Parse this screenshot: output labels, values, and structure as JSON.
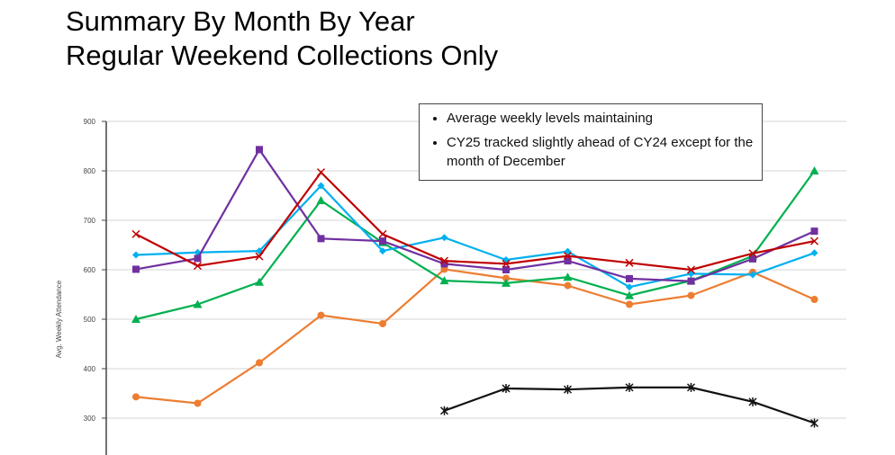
{
  "title": "Summary By Month By Year",
  "subtitle": "Regular Weekend Collections Only",
  "notes": [
    "Average weekly levels maintaining",
    "CY25 tracked slightly ahead of CY24 except for the month of December"
  ],
  "chart_data": {
    "type": "line",
    "title": "Summary By Month By Year",
    "subtitle": "Regular Weekend Collections Only",
    "xlabel": "",
    "ylabel": "Avg. Weekly Attendance",
    "ylim": [
      225,
      900
    ],
    "yticks": [
      300,
      400,
      500,
      600,
      700,
      800,
      900
    ],
    "grid": true,
    "x": [
      1,
      2,
      3,
      4,
      5,
      6,
      7,
      8,
      9,
      10,
      11,
      12
    ],
    "series": [
      {
        "marker": "circle",
        "color": "#ED7D31",
        "values": [
          343,
          330,
          412,
          508,
          491,
          601,
          583,
          568,
          530,
          548,
          595,
          540
        ]
      },
      {
        "marker": "triangle",
        "color": "#00B050",
        "values": [
          500,
          530,
          575,
          740,
          655,
          578,
          573,
          585,
          548,
          578,
          628,
          800
        ]
      },
      {
        "marker": "diamond",
        "color": "#00B0F0",
        "values": [
          630,
          635,
          638,
          770,
          638,
          665,
          620,
          637,
          565,
          592,
          590,
          634
        ]
      },
      {
        "marker": "square",
        "color": "#7030A0",
        "values": [
          601,
          623,
          843,
          663,
          658,
          612,
          600,
          618,
          582,
          577,
          622,
          678
        ]
      },
      {
        "marker": "x",
        "color": "#C00000",
        "values": [
          672,
          608,
          627,
          797,
          672,
          618,
          612,
          628,
          614,
          600,
          633,
          658
        ]
      },
      {
        "marker": "star",
        "color": "#111111",
        "values": [
          null,
          null,
          null,
          null,
          null,
          315,
          360,
          358,
          362,
          362,
          333,
          290
        ]
      }
    ]
  }
}
